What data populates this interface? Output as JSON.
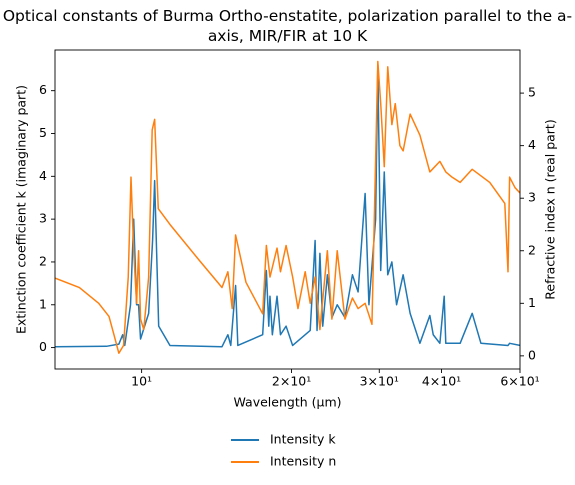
{
  "chart_data": {
    "type": "line",
    "title": "Optical constants of Burma Ortho-enstatite, polarization parallel to the a-axis, MIR/FIR at 10 K",
    "x_label": "Wavelength (μm)",
    "y_label": "Extinction coefficient k (imaginary part)",
    "y2_label": "Refractive index n (real part)",
    "x_scale": "log",
    "xlim": [
      6.7,
      57.5
    ],
    "xticks": [
      {
        "value": 10,
        "label": "10¹"
      },
      {
        "value": 20,
        "label": "2×10¹"
      },
      {
        "value": 30,
        "label": "3×10¹"
      },
      {
        "value": 40,
        "label": "4×10¹"
      },
      {
        "value": 57.5,
        "label": "6×10¹"
      }
    ],
    "ylim": [
      -0.5,
      6.95
    ],
    "yticks": [
      0,
      1,
      2,
      3,
      4,
      5,
      6
    ],
    "y2lim": [
      -0.25,
      5.82
    ],
    "y2ticks": [
      0,
      1,
      2,
      3,
      4,
      5
    ],
    "legend": "bottom",
    "series": [
      {
        "name": "Intensity k",
        "color": "#1f77b4",
        "axis": "y",
        "x": [
          6.7,
          8.5,
          9.0,
          9.16,
          9.25,
          9.5,
          9.64,
          9.77,
          9.86,
          9.95,
          10.33,
          10.52,
          10.62,
          10.82,
          11.4,
          14.5,
          14.9,
          15.1,
          15.44,
          15.6,
          17.5,
          17.8,
          18.0,
          18.1,
          18.3,
          18.7,
          19.0,
          19.5,
          20.1,
          21.8,
          22.3,
          22.5,
          22.8,
          23.1,
          23.6,
          24.1,
          24.7,
          25.6,
          26.5,
          27.2,
          28.1,
          28.6,
          29.5,
          29.8,
          30.2,
          30.7,
          31.2,
          31.8,
          32.5,
          33.5,
          34.6,
          36.2,
          37.9,
          38.5,
          39.7,
          40.5,
          40.8,
          42.0,
          43.6,
          46.1,
          48,
          54.4,
          54.8,
          57.5
        ],
        "values": [
          0.02,
          0.03,
          0.08,
          0.3,
          0.05,
          1.0,
          3.0,
          1.0,
          1.0,
          0.2,
          0.8,
          2.5,
          3.9,
          0.5,
          0.05,
          0.02,
          0.3,
          0.05,
          1.45,
          0.05,
          0.3,
          1.8,
          0.5,
          1.2,
          0.3,
          1.2,
          0.3,
          0.5,
          0.05,
          0.4,
          2.5,
          0.4,
          2.2,
          0.5,
          1.7,
          0.7,
          1.0,
          0.7,
          1.7,
          1.3,
          3.6,
          1.0,
          3.0,
          6.6,
          1.8,
          4.1,
          1.7,
          2.0,
          1.0,
          1.7,
          0.8,
          0.1,
          0.75,
          0.3,
          0.1,
          1.2,
          0.1,
          0.1,
          0.1,
          0.8,
          0.1,
          0.05,
          0.1,
          0.05
        ]
      },
      {
        "name": "Intensity n",
        "color": "#ff7f0e",
        "axis": "y2",
        "x": [
          6.7,
          7.5,
          8.2,
          8.6,
          8.8,
          9.0,
          9.2,
          9.4,
          9.52,
          9.64,
          9.77,
          9.86,
          9.95,
          10.1,
          10.33,
          10.5,
          10.62,
          10.8,
          11.4,
          13.1,
          14.5,
          14.9,
          15.2,
          15.44,
          16.2,
          17.5,
          17.8,
          18.1,
          18.7,
          19.0,
          19.5,
          20.1,
          20.6,
          21.3,
          21.8,
          22.3,
          22.8,
          23.6,
          24.1,
          24.7,
          25.6,
          26.5,
          27.2,
          28.1,
          29.0,
          29.8,
          30.2,
          30.7,
          31.2,
          31.8,
          32.3,
          33.0,
          33.5,
          34.6,
          36.2,
          37.9,
          39.7,
          40.8,
          42.0,
          43.6,
          46.1,
          50.0,
          53.6,
          54.4,
          54.8,
          56.2,
          57.5
        ],
        "values": [
          1.48,
          1.3,
          1.0,
          0.75,
          0.4,
          0.05,
          0.2,
          1.5,
          3.4,
          2.0,
          1.0,
          2.0,
          0.7,
          0.5,
          1.5,
          4.3,
          4.5,
          2.8,
          2.5,
          1.8,
          1.3,
          1.6,
          0.9,
          2.3,
          1.4,
          0.8,
          2.1,
          1.5,
          2.05,
          1.6,
          2.1,
          1.5,
          0.9,
          1.6,
          1.0,
          1.5,
          0.5,
          2.0,
          0.7,
          2.0,
          0.7,
          1.1,
          0.9,
          1.0,
          0.6,
          5.6,
          4.8,
          3.6,
          5.5,
          4.4,
          4.8,
          4.0,
          3.9,
          4.6,
          4.2,
          3.5,
          3.7,
          3.5,
          3.4,
          3.3,
          3.55,
          3.3,
          2.9,
          1.6,
          3.4,
          3.2,
          3.1
        ]
      }
    ]
  }
}
